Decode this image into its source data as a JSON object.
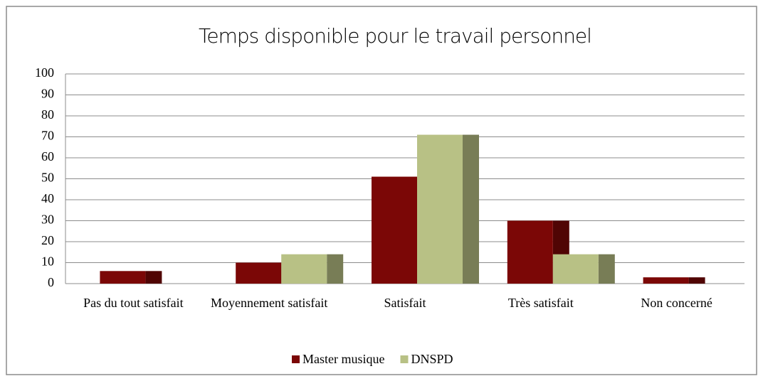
{
  "chart_data": {
    "type": "bar",
    "title": "Temps disponible pour le travail personnel",
    "categories": [
      "Pas du tout satisfait",
      "Moyennement satisfait",
      "Satisfait",
      "Très satisfait",
      "Non concerné"
    ],
    "series": [
      {
        "name": "Master musique",
        "color": "#7b0706",
        "values": [
          6,
          10,
          51,
          30,
          3
        ]
      },
      {
        "name": "DNSPD",
        "color": "#b8c185",
        "values": [
          0,
          14,
          71,
          14,
          0
        ]
      }
    ],
    "ylim": [
      0,
      100
    ],
    "yticks": [
      0,
      10,
      20,
      30,
      40,
      50,
      60,
      70,
      80,
      90,
      100
    ],
    "grid": true,
    "legend": "bottom"
  }
}
